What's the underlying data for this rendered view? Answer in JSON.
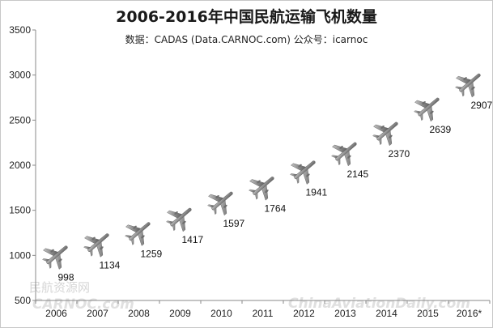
{
  "chart_data": {
    "type": "scatter",
    "title": "2006-2016年中国民航运输飞机数量",
    "subtitle": "数据：CADAS (Data.CARNOC.com)  公众号：icarnoc",
    "categories": [
      "2006",
      "2007",
      "2008",
      "2009",
      "2010",
      "2011",
      "2012",
      "2013",
      "2014",
      "2015",
      "2016*"
    ],
    "values": [
      998,
      1134,
      1259,
      1417,
      1597,
      1764,
      1941,
      2145,
      2370,
      2639,
      2907
    ],
    "data_labels": [
      "998",
      "1134",
      "1259",
      "1417",
      "1597",
      "1764",
      "1941",
      "2145",
      "2370",
      "2639",
      "2907"
    ],
    "ylim": [
      500,
      3500
    ],
    "yticks": [
      500,
      1000,
      1500,
      2000,
      2500,
      3000,
      3500
    ],
    "ytick_labels": [
      "500",
      "1000",
      "1500",
      "2000",
      "2500",
      "3000",
      "3500"
    ],
    "xlabel": "",
    "ylabel": "",
    "marker": "airplane-icon",
    "marker_color": "#8a8a8a",
    "grid": false,
    "legend": "none"
  },
  "watermark": {
    "cn": "民航资源网",
    "left": "CARNOC.com",
    "right": "ChinaAviationDaily.com"
  }
}
